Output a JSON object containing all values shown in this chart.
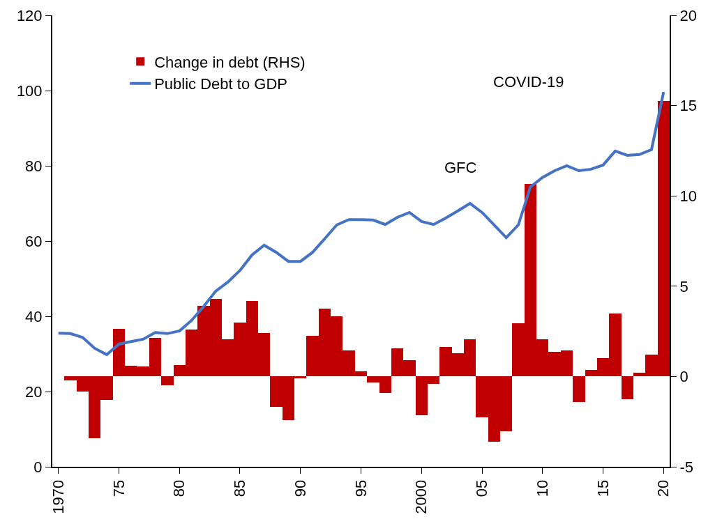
{
  "chart_data": {
    "type": "bar",
    "x": [
      1970,
      1971,
      1972,
      1973,
      1974,
      1975,
      1976,
      1977,
      1978,
      1979,
      1980,
      1981,
      1982,
      1983,
      1984,
      1985,
      1986,
      1987,
      1988,
      1989,
      1990,
      1991,
      1992,
      1993,
      1994,
      1995,
      1996,
      1997,
      1998,
      1999,
      2000,
      2001,
      2002,
      2003,
      2004,
      2005,
      2006,
      2007,
      2008,
      2009,
      2010,
      2011,
      2012,
      2013,
      2014,
      2015,
      2016,
      2017,
      2018,
      2019,
      2020
    ],
    "series": [
      {
        "name": "Change in debt (RHS)",
        "axis": "y2",
        "color": "#c00000",
        "values": [
          null,
          -0.2,
          -0.85,
          -3.4,
          -1.3,
          2.65,
          0.6,
          0.55,
          2.15,
          -0.5,
          0.65,
          2.6,
          3.9,
          4.3,
          2.05,
          3.0,
          4.2,
          2.4,
          -1.7,
          -2.4,
          -0.1,
          2.25,
          3.75,
          3.35,
          1.45,
          0.3,
          -0.35,
          -0.9,
          1.55,
          0.9,
          -2.15,
          -0.4,
          1.65,
          1.3,
          2.05,
          -2.25,
          -3.6,
          -3.05,
          2.95,
          10.65,
          2.05,
          1.35,
          1.45,
          -1.4,
          0.35,
          1.0,
          3.5,
          -1.25,
          0.2,
          1.2,
          15.25
        ]
      },
      {
        "name": "Public Debt to GDP",
        "type": "line",
        "color": "#4472c4",
        "values": [
          35.5,
          35.4,
          34.4,
          31.5,
          29.8,
          32.6,
          33.3,
          33.9,
          35.7,
          35.4,
          36.1,
          38.9,
          42.6,
          46.7,
          49.1,
          52.2,
          56.3,
          58.9,
          57.0,
          54.6,
          54.6,
          57.0,
          60.6,
          64.3,
          65.7,
          65.7,
          65.6,
          64.4,
          66.3,
          67.6,
          65.2,
          64.4,
          66.1,
          68.0,
          70.0,
          67.6,
          64.3,
          60.9,
          64.3,
          74.4,
          76.9,
          78.7,
          80.0,
          78.7,
          79.1,
          80.2,
          83.9,
          82.8,
          83.0,
          84.3,
          99.6
        ]
      }
    ],
    "xlim": [
      1969.5,
      2020.5
    ],
    "xticks": [
      {
        "value": 1970,
        "label": "1970"
      },
      {
        "value": 1975,
        "label": "75"
      },
      {
        "value": 1980,
        "label": "80"
      },
      {
        "value": 1985,
        "label": "85"
      },
      {
        "value": 1990,
        "label": "90"
      },
      {
        "value": 1995,
        "label": "95"
      },
      {
        "value": 2000,
        "label": "2000"
      },
      {
        "value": 2005,
        "label": "05"
      },
      {
        "value": 2010,
        "label": "10"
      },
      {
        "value": 2015,
        "label": "15"
      },
      {
        "value": 2020,
        "label": "20"
      }
    ],
    "ylim": [
      0,
      120
    ],
    "yticks": [
      0,
      20,
      40,
      60,
      80,
      100,
      120
    ],
    "y2lim": [
      -5,
      20
    ],
    "y2ticks": [
      -5,
      0,
      5,
      10,
      15,
      20
    ],
    "annotations": [
      "GFC",
      "COVID-19"
    ],
    "grid": false,
    "legend": "top left"
  }
}
